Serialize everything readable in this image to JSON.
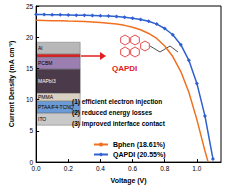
{
  "chart_data": {
    "type": "line",
    "x_label": "Voltage (V)",
    "y_label": "Current Density (mA cm⁻²)",
    "xlim": [
      0,
      1.15
    ],
    "xticks": [
      {
        "value": 0,
        "label": "0.0"
      },
      {
        "value": 0.2,
        "label": "0.2"
      },
      {
        "value": 0.4,
        "label": "0.4"
      },
      {
        "value": 0.6,
        "label": "0.6"
      },
      {
        "value": 0.8,
        "label": "0.8"
      },
      {
        "value": 1.0,
        "label": "1.0"
      }
    ],
    "ylim": [
      0,
      25
    ],
    "yticks": [
      0,
      5,
      10,
      15,
      20,
      25
    ],
    "grid": false,
    "legend": "lower right",
    "series": [
      {
        "name": "Bphen (18.61%)",
        "color": "#f07020",
        "marker": "none",
        "x": [
          0,
          0.05,
          0.1,
          0.15,
          0.2,
          0.25,
          0.3,
          0.35,
          0.4,
          0.45,
          0.5,
          0.55,
          0.6,
          0.65,
          0.7,
          0.75,
          0.8,
          0.85,
          0.9,
          0.95,
          1.0,
          1.05,
          1.07
        ],
        "values": [
          22.7,
          22.68,
          22.65,
          22.62,
          22.58,
          22.55,
          22.5,
          22.45,
          22.35,
          22.25,
          22.1,
          21.9,
          21.6,
          21.2,
          20.6,
          19.8,
          18.6,
          16.9,
          14.5,
          11.2,
          6.8,
          1.8,
          0
        ]
      },
      {
        "name": "QAPDI (20.55%)",
        "color": "#3060d0",
        "marker": "diamond",
        "x": [
          0,
          0.05,
          0.1,
          0.15,
          0.2,
          0.25,
          0.3,
          0.35,
          0.4,
          0.45,
          0.5,
          0.55,
          0.6,
          0.65,
          0.7,
          0.75,
          0.8,
          0.85,
          0.9,
          0.95,
          1.0,
          1.05,
          1.1
        ],
        "values": [
          23.65,
          23.62,
          23.6,
          23.58,
          23.55,
          23.52,
          23.5,
          23.47,
          23.42,
          23.38,
          23.3,
          23.2,
          23.05,
          22.85,
          22.55,
          22.1,
          21.4,
          20.4,
          18.8,
          16.3,
          12.6,
          7.4,
          0.5
        ]
      }
    ],
    "annotations": [
      "(1) efficient electron injection",
      "(2) reduced energy losses",
      "(3) improved interface contact"
    ],
    "molecule_label": "QAPDI",
    "inset_layers": [
      "Al",
      "",
      "PCBM",
      "MAPbI3",
      "PMMA",
      "PTAA/F4-TCNQ",
      "ITO"
    ]
  }
}
